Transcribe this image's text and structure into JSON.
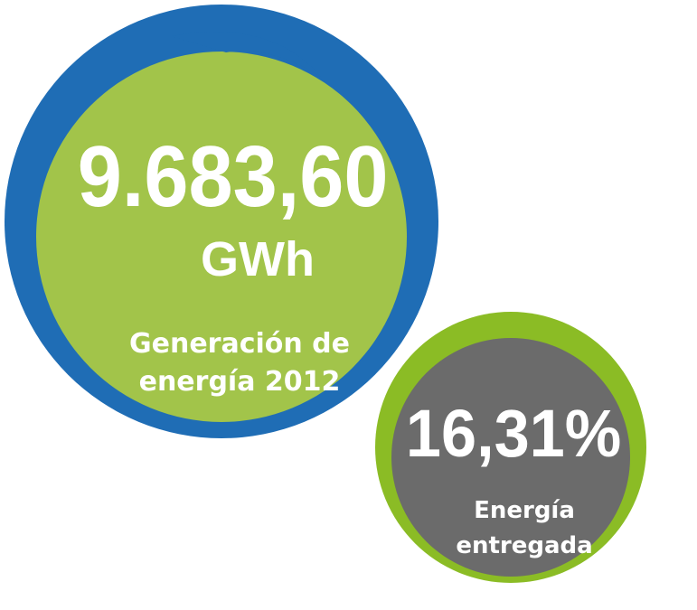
{
  "big": {
    "value": "9.683,60",
    "unit": "GWh",
    "label_lines": [
      "Generación de",
      "energía 2012"
    ]
  },
  "small": {
    "value": "16,31%",
    "label_lines": [
      "Energía",
      "entregada"
    ]
  }
}
